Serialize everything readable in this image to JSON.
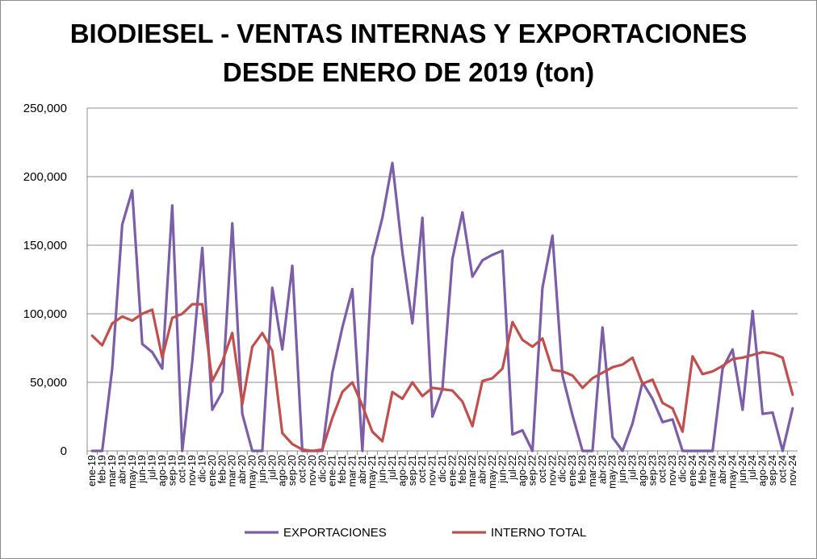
{
  "chart_data": {
    "type": "line",
    "title_line1": "BIODIESEL - VENTAS INTERNAS Y EXPORTACIONES",
    "title_line2": "DESDE ENERO DE 2019 (ton)",
    "ylim": [
      0,
      250000
    ],
    "yticks": [
      0,
      50000,
      100000,
      150000,
      200000,
      250000
    ],
    "ytick_labels": [
      "0",
      "50,000",
      "100,000",
      "150,000",
      "200,000",
      "250,000"
    ],
    "grid": true,
    "legend_position": "bottom",
    "categories": [
      "ene-19",
      "feb-19",
      "mar-19",
      "abr-19",
      "may-19",
      "jun-19",
      "jul-19",
      "ago-19",
      "sep-19",
      "oct-19",
      "nov-19",
      "dic-19",
      "ene-20",
      "feb-20",
      "mar-20",
      "abr-20",
      "may-20",
      "jun-20",
      "jul-20",
      "ago-20",
      "sep-20",
      "oct-20",
      "nov-20",
      "dic-20",
      "ene-21",
      "feb-21",
      "mar-21",
      "abr-21",
      "may-21",
      "jun-21",
      "jul-21",
      "ago-21",
      "sep-21",
      "oct-21",
      "nov-21",
      "dic-21",
      "ene-22",
      "feb-22",
      "mar-22",
      "abr-22",
      "may-22",
      "jun-22",
      "jul-22",
      "ago-22",
      "sep-22",
      "oct-22",
      "nov-22",
      "dic-22",
      "ene-23",
      "feb-23",
      "mar-23",
      "abr-23",
      "may-23",
      "jun-23",
      "jul-23",
      "ago-23",
      "sep-23",
      "oct-23",
      "nov-23",
      "dic-23",
      "ene-24",
      "feb-24",
      "mar-24",
      "abr-24",
      "may-24",
      "jun-24",
      "jul-24",
      "ago-24",
      "sep-24",
      "oct-24",
      "nov-24"
    ],
    "series": [
      {
        "name": "EXPORTACIONES",
        "color": "#7b5ea7",
        "values": [
          0,
          0,
          60000,
          165000,
          190000,
          78000,
          72000,
          60000,
          179000,
          0,
          65000,
          148000,
          30000,
          43000,
          166000,
          27000,
          0,
          0,
          119000,
          74000,
          135000,
          0,
          0,
          0,
          57000,
          90000,
          118000,
          0,
          141000,
          170000,
          210000,
          145000,
          93000,
          170000,
          25000,
          45000,
          140000,
          174000,
          127000,
          139000,
          143000,
          146000,
          12000,
          15000,
          0,
          119000,
          157000,
          55000,
          26000,
          0,
          0,
          90000,
          10000,
          0,
          20000,
          50000,
          38000,
          21000,
          23000,
          0,
          0,
          0,
          0,
          60000,
          74000,
          30000,
          102000,
          27000,
          28000,
          0,
          31000
        ]
      },
      {
        "name": "INTERNO TOTAL",
        "color": "#c0504d",
        "values": [
          84000,
          77000,
          93000,
          98000,
          95000,
          100000,
          103000,
          68000,
          97000,
          100000,
          107000,
          107000,
          51000,
          65000,
          86000,
          34000,
          76000,
          86000,
          73000,
          13000,
          5000,
          1000,
          0,
          1000,
          24000,
          43000,
          50000,
          33000,
          14000,
          7000,
          43000,
          38000,
          50000,
          40000,
          46000,
          45000,
          44000,
          36000,
          18000,
          51000,
          53000,
          60000,
          94000,
          81000,
          76000,
          82000,
          59000,
          58000,
          55000,
          46000,
          53000,
          57000,
          61000,
          63000,
          68000,
          49000,
          52000,
          35000,
          31000,
          14000,
          69000,
          56000,
          58000,
          62000,
          67000,
          68000,
          70000,
          72000,
          71000,
          68000,
          41000
        ]
      }
    ]
  }
}
